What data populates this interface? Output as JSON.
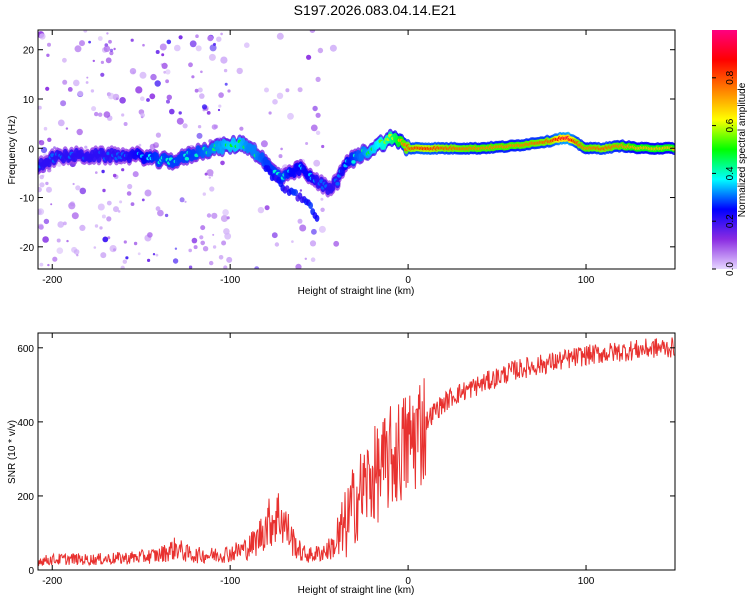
{
  "title": "S197.2026.083.04.14.E21",
  "chart_data": [
    {
      "type": "heatmap",
      "title": "S197.2026.083.04.14.E21",
      "xlabel": "Height of straight line (km)",
      "ylabel": "Frequency (Hz)",
      "xlim": [
        -208,
        150
      ],
      "ylim": [
        -24.5,
        24
      ],
      "xticks": [
        -200,
        -100,
        0,
        100
      ],
      "yticks": [
        -20,
        -10,
        0,
        10,
        20
      ],
      "colorbar": {
        "label": "Normalized spectral amplitude",
        "range": [
          0,
          1
        ],
        "ticks": [
          "0.0",
          "0.2",
          "0.4",
          "0.6",
          "0.8"
        ],
        "colors": [
          "#e6d6ff",
          "#8a2be2",
          "#0000ff",
          "#00ffff",
          "#00ff00",
          "#ffff00",
          "#ff8000",
          "#ff0000",
          "#ff0080"
        ]
      },
      "ridge": {
        "x": [
          -208,
          -200,
          -190,
          -180,
          -170,
          -160,
          -150,
          -140,
          -130,
          -120,
          -110,
          -100,
          -95,
          -90,
          -85,
          -80,
          -75,
          -70,
          -65,
          -60,
          -55,
          -50,
          -45,
          -40,
          -35,
          -30,
          -25,
          -20,
          -15,
          -10,
          -5,
          0,
          10,
          20,
          40,
          60,
          80,
          85,
          90,
          95,
          100,
          110,
          120,
          130,
          140,
          150
        ],
        "freq": [
          -3.5,
          -2,
          -1.5,
          -1.5,
          -1.5,
          -1.5,
          -1.5,
          -2.5,
          -2.5,
          -1,
          0,
          0.5,
          1,
          0.5,
          -1,
          -3,
          -5,
          -6,
          -5,
          -4,
          -6,
          -7,
          -8,
          -7,
          -3,
          -2,
          -1,
          0,
          1,
          2,
          1.5,
          0,
          0,
          0,
          0,
          0.5,
          1.5,
          2,
          2,
          1,
          0,
          0,
          0.5,
          0,
          0,
          0
        ],
        "amplitude": [
          0.3,
          0.3,
          0.3,
          0.3,
          0.3,
          0.3,
          0.35,
          0.4,
          0.4,
          0.4,
          0.45,
          0.5,
          0.5,
          0.45,
          0.45,
          0.4,
          0.4,
          0.4,
          0.35,
          0.35,
          0.35,
          0.3,
          0.3,
          0.3,
          0.35,
          0.4,
          0.45,
          0.5,
          0.55,
          0.6,
          0.7,
          0.8,
          0.85,
          0.8,
          0.75,
          0.75,
          0.8,
          0.9,
          0.95,
          0.8,
          0.75,
          0.8,
          0.75,
          0.7,
          0.7,
          0.7
        ]
      },
      "branch": {
        "x": [
          -80,
          -75,
          -70,
          -65,
          -60,
          -55,
          -50
        ],
        "freq": [
          -4,
          -6,
          -8,
          -9,
          -10,
          -12,
          -15
        ]
      }
    },
    {
      "type": "line",
      "xlabel": "Height of straight line (km)",
      "ylabel": "SNR (10 * v/v)",
      "xlim": [
        -208,
        150
      ],
      "ylim": [
        0,
        640
      ],
      "xticks": [
        -200,
        -100,
        0,
        100
      ],
      "yticks": [
        0,
        200,
        400,
        600
      ],
      "color": "#e8312f",
      "series": [
        {
          "name": "SNR",
          "x": [
            -208,
            -200,
            -190,
            -180,
            -170,
            -160,
            -150,
            -140,
            -135,
            -130,
            -125,
            -120,
            -110,
            -100,
            -90,
            -85,
            -80,
            -75,
            -72,
            -70,
            -65,
            -60,
            -55,
            -50,
            -45,
            -40,
            -35,
            -32,
            -30,
            -28,
            -25,
            -22,
            -20,
            -15,
            -10,
            -5,
            0,
            5,
            10,
            15,
            20,
            25,
            30,
            40,
            50,
            60,
            70,
            80,
            90,
            100,
            110,
            120,
            130,
            140,
            150
          ],
          "y": [
            25,
            28,
            30,
            28,
            30,
            32,
            35,
            40,
            50,
            60,
            45,
            40,
            40,
            45,
            60,
            80,
            120,
            140,
            150,
            130,
            80,
            45,
            40,
            45,
            55,
            70,
            120,
            160,
            180,
            200,
            220,
            240,
            250,
            270,
            300,
            320,
            340,
            370,
            400,
            430,
            450,
            470,
            480,
            500,
            520,
            540,
            550,
            560,
            570,
            580,
            585,
            590,
            595,
            600,
            600
          ]
        }
      ]
    }
  ]
}
